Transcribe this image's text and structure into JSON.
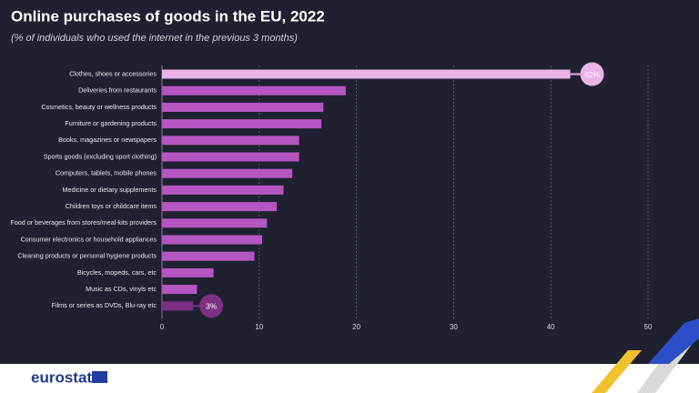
{
  "chart_data": {
    "type": "bar",
    "orientation": "horizontal",
    "title": "Online purchases of goods in the EU, 2022",
    "subtitle": "(% of individuals who used the internet in the previous 3 months)",
    "categories": [
      "Clothes, shoes or accessories",
      "Deliveries from restaurants",
      "Cosmetics, beauty or wellness products",
      "Furniture or gardening products",
      "Books, magazines or newspapers",
      "Sports goods (excluding sport clothing)",
      "Computers, tablets, mobile phones",
      "Medicine or dietary supplements",
      "Children toys or childcare items",
      "Food or beverages from stores/meal-kits providers",
      "Consumer electronics or household appliances",
      "Cleaning products or personal hygiene products",
      "Bicycles, mopeds, cars, etc",
      "Music as CDs, vinyls etc",
      "Films or series as DVDs, Blu-ray etc"
    ],
    "values": [
      42,
      18.9,
      16.6,
      16.4,
      14.1,
      14.1,
      13.4,
      12.5,
      11.8,
      10.8,
      10.3,
      9.5,
      5.3,
      3.6,
      3.2
    ],
    "value_labels": [
      "42%",
      null,
      null,
      null,
      null,
      null,
      null,
      null,
      null,
      null,
      null,
      null,
      null,
      null,
      "3%"
    ],
    "colors": [
      "#eab3e8",
      "#b656c2",
      "#b656c2",
      "#b656c2",
      "#b656c2",
      "#b656c2",
      "#b656c2",
      "#b656c2",
      "#b656c2",
      "#b656c2",
      "#b656c2",
      "#b656c2",
      "#b656c2",
      "#b656c2",
      "#7e2f86"
    ],
    "xlim": [
      0,
      50
    ],
    "xticks": [
      0,
      10,
      20,
      30,
      40,
      50
    ],
    "grid": true
  },
  "footer": {
    "logo": "eurostat"
  }
}
